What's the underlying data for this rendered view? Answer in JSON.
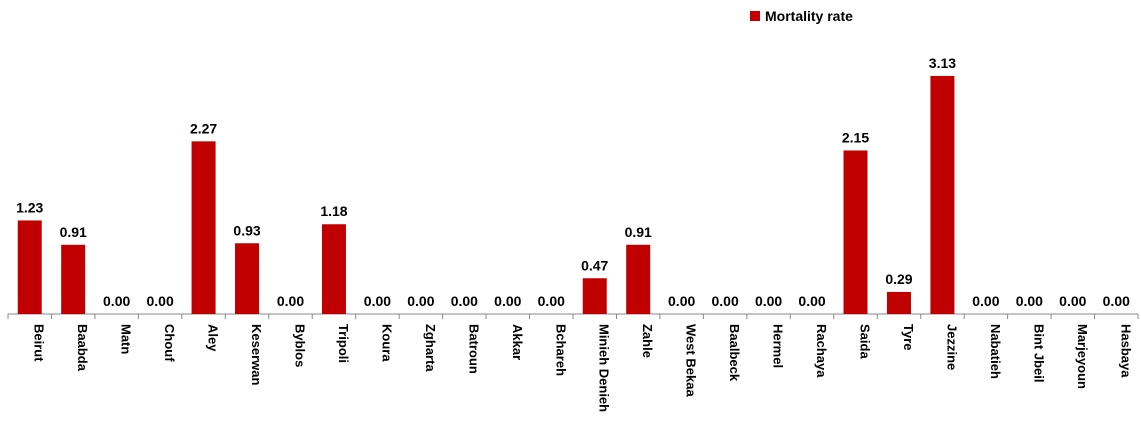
{
  "chart_data": {
    "type": "bar",
    "categories": [
      "Beirut",
      "Baabda",
      "Matn",
      "Chouf",
      "Aley",
      "Keserwan",
      "Byblos",
      "Tripoli",
      "Koura",
      "Zgharta",
      "Batroun",
      "Akkar",
      "Bchareh",
      "Minieh Denieh",
      "Zahle",
      "West Bekaa",
      "Baalbeck",
      "Hermel",
      "Rachaya",
      "Saida",
      "Tyre",
      "Jezzine",
      "Nabatieh",
      "Bint Jbeil",
      "Marjeyoun",
      "Hasbaya"
    ],
    "series": [
      {
        "name": "Mortality rate",
        "values": [
          1.23,
          0.91,
          0.0,
          0.0,
          2.27,
          0.93,
          0.0,
          1.18,
          0.0,
          0.0,
          0.0,
          0.0,
          0.0,
          0.47,
          0.91,
          0.0,
          0.0,
          0.0,
          0.0,
          2.15,
          0.29,
          3.13,
          0.0,
          0.0,
          0.0,
          0.0
        ],
        "labels": [
          "1.23",
          "0.91",
          "0.00",
          "0.00",
          "2.27",
          "0.93",
          "0.00",
          "1.18",
          "0.00",
          "0.00",
          "0.00",
          "0.00",
          "0.00",
          "0.47",
          "0.91",
          "0.00",
          "0.00",
          "0.00",
          "0.00",
          "2.15",
          "0.29",
          "3.13",
          "0.00",
          "0.00",
          "0.00",
          "0.00"
        ],
        "color": "#c00000"
      }
    ],
    "ylim": [
      0,
      3.3
    ],
    "grid": false,
    "legend": "top-right"
  }
}
